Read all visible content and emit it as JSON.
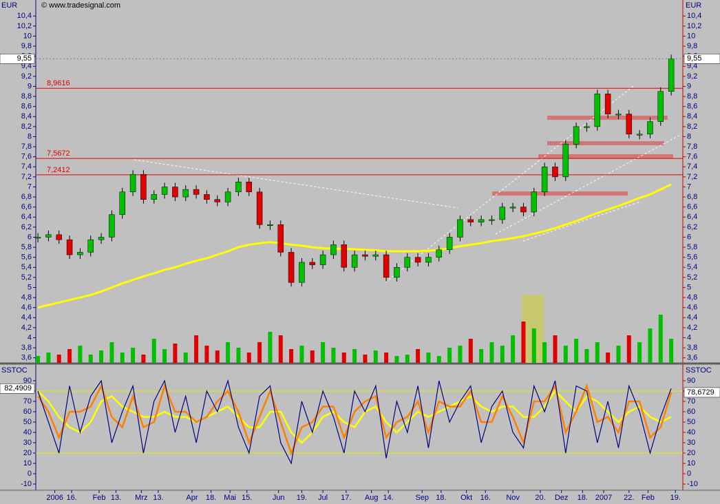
{
  "chart_data": [
    {
      "type": "candlestick",
      "axis_label": "EUR",
      "watermark": "© www.tradesignal.com",
      "x": [
        0,
        5,
        10,
        15,
        20,
        25,
        30,
        35,
        40,
        45,
        50,
        55,
        60,
        65,
        70,
        75,
        80,
        85,
        90,
        95,
        100,
        105,
        110,
        115,
        120,
        125,
        130,
        135,
        140,
        145,
        150,
        155,
        160,
        165,
        170,
        175,
        180,
        185,
        190,
        195,
        200,
        205,
        210,
        215,
        220,
        225,
        230,
        235,
        240,
        245,
        250,
        255,
        260,
        265,
        270,
        275,
        280,
        285,
        290,
        295,
        300
      ],
      "values": [
        6.0,
        6.05,
        5.95,
        5.65,
        5.7,
        5.95,
        6.0,
        6.45,
        6.9,
        7.25,
        6.75,
        6.85,
        7.0,
        6.8,
        6.95,
        6.85,
        6.75,
        6.7,
        6.9,
        7.1,
        6.9,
        6.25,
        6.25,
        5.7,
        5.1,
        5.5,
        5.45,
        5.65,
        5.85,
        5.4,
        5.65,
        5.62,
        5.65,
        5.2,
        5.4,
        5.6,
        5.5,
        5.6,
        5.75,
        6.0,
        6.35,
        6.3,
        6.35,
        6.35,
        6.6,
        6.6,
        6.5,
        6.9,
        7.4,
        7.2,
        7.85,
        8.2,
        8.2,
        8.85,
        8.45,
        8.45,
        8.05,
        8.05,
        8.3,
        8.9,
        9.55
      ],
      "color_up": "#00c000",
      "color_down": "#e00000",
      "overlays": [
        {
          "color": "#ffff00",
          "values": [
            4.6,
            4.65,
            4.7,
            4.75,
            4.8,
            4.85,
            4.92,
            5.0,
            5.08,
            5.15,
            5.22,
            5.28,
            5.35,
            5.4,
            5.47,
            5.53,
            5.58,
            5.65,
            5.72,
            5.8,
            5.85,
            5.88,
            5.9,
            5.88,
            5.85,
            5.83,
            5.8,
            5.78,
            5.77,
            5.77,
            5.76,
            5.75,
            5.74,
            5.72,
            5.72,
            5.72,
            5.72,
            5.73,
            5.75,
            5.78,
            5.82,
            5.85,
            5.88,
            5.92,
            5.95,
            5.98,
            6.02,
            6.07,
            6.12,
            6.18,
            6.25,
            6.32,
            6.4,
            6.48,
            6.55,
            6.62,
            6.7,
            6.78,
            6.85,
            6.95,
            7.05
          ]
        }
      ],
      "volume": [
        10,
        15,
        12,
        20,
        25,
        12,
        18,
        30,
        15,
        22,
        12,
        35,
        20,
        28,
        15,
        40,
        25,
        18,
        30,
        22,
        15,
        30,
        45,
        40,
        20,
        25,
        18,
        30,
        22,
        15,
        20,
        12,
        18,
        15,
        10,
        12,
        20,
        15,
        10,
        22,
        25,
        35,
        20,
        30,
        25,
        40,
        60,
        50,
        30,
        40,
        25,
        35,
        20,
        30,
        15,
        25,
        40,
        30,
        50,
        70,
        35
      ],
      "levels": [
        {
          "value": 8.9616,
          "label": "8,9616"
        },
        {
          "value": 7.5672,
          "label": "7,5672"
        },
        {
          "value": 7.2412,
          "label": "7,2412"
        }
      ],
      "level_color": "#e00000",
      "current": {
        "value": 9.55,
        "label": "9,55"
      },
      "xlim": [
        -1,
        305.5
      ],
      "ylim": [
        3.5,
        10.65
      ],
      "yticks": [
        {
          "value": 3.6,
          "label": "3,6"
        },
        {
          "value": 3.8,
          "label": "3,8"
        },
        4,
        {
          "value": 4.2,
          "label": "4,2"
        },
        {
          "value": 4.4,
          "label": "4,4"
        },
        {
          "value": 4.6,
          "label": "4,6"
        },
        {
          "value": 4.8,
          "label": "4,8"
        },
        5,
        {
          "value": 5.2,
          "label": "5,2"
        },
        {
          "value": 5.4,
          "label": "5,4"
        },
        {
          "value": 5.6,
          "label": "5,6"
        },
        {
          "value": 5.8,
          "label": "5,8"
        },
        6,
        {
          "value": 6.2,
          "label": "6,2"
        },
        {
          "value": 6.4,
          "label": "6,4"
        },
        {
          "value": 6.6,
          "label": "6,6"
        },
        {
          "value": 6.8,
          "label": "6,8"
        },
        7,
        {
          "value": 7.2,
          "label": "7,2"
        },
        {
          "value": 7.4,
          "label": "7,4"
        },
        {
          "value": 7.6,
          "label": "7,6"
        },
        {
          "value": 7.8,
          "label": "7,8"
        },
        8,
        {
          "value": 8.2,
          "label": "8,2"
        },
        {
          "value": 8.4,
          "label": "8,4"
        },
        {
          "value": 8.6,
          "label": "8,6"
        },
        {
          "value": 8.8,
          "label": "8,8"
        },
        9,
        {
          "value": 9.2,
          "label": "9,2"
        },
        {
          "value": 9.4,
          "label": "9,4"
        },
        {
          "value": 9.6,
          "label": "9,6"
        },
        {
          "value": 9.8,
          "label": "9,8"
        },
        10,
        {
          "value": 10.2,
          "label": "10,2"
        },
        {
          "value": 10.4,
          "label": "10,4"
        }
      ]
    },
    {
      "type": "line",
      "axis_label": "SSTOC",
      "x": [
        0,
        5,
        10,
        15,
        20,
        25,
        30,
        35,
        40,
        45,
        50,
        55,
        60,
        65,
        70,
        75,
        80,
        85,
        90,
        95,
        100,
        105,
        110,
        115,
        120,
        125,
        130,
        135,
        140,
        145,
        150,
        155,
        160,
        165,
        170,
        175,
        180,
        185,
        190,
        195,
        200,
        205,
        210,
        215,
        220,
        225,
        230,
        235,
        240,
        245,
        250,
        255,
        260,
        265,
        270,
        275,
        280,
        285,
        290,
        295,
        300
      ],
      "series": [
        {
          "color": "#ffff00",
          "values": [
            80,
            70,
            55,
            45,
            40,
            50,
            70,
            75,
            65,
            60,
            55,
            55,
            60,
            55,
            55,
            50,
            55,
            60,
            65,
            55,
            45,
            45,
            60,
            60,
            40,
            30,
            40,
            55,
            60,
            50,
            45,
            60,
            65,
            50,
            40,
            50,
            60,
            55,
            60,
            65,
            70,
            75,
            65,
            60,
            65,
            65,
            55,
            55,
            65,
            80,
            70,
            60,
            75,
            70,
            60,
            50,
            60,
            65,
            55,
            50,
            55
          ]
        },
        {
          "color": "#ff8000",
          "values": [
            75,
            60,
            35,
            60,
            60,
            65,
            85,
            55,
            45,
            75,
            45,
            50,
            85,
            60,
            60,
            50,
            55,
            70,
            80,
            60,
            30,
            55,
            80,
            50,
            20,
            45,
            50,
            65,
            65,
            35,
            60,
            70,
            75,
            35,
            50,
            55,
            70,
            40,
            70,
            65,
            65,
            80,
            50,
            50,
            75,
            55,
            30,
            70,
            70,
            85,
            40,
            60,
            85,
            50,
            55,
            40,
            70,
            70,
            35,
            45,
            78.6729
          ]
        },
        {
          "color": "#000080",
          "values": [
            80,
            50,
            20,
            85,
            40,
            75,
            90,
            30,
            60,
            85,
            20,
            70,
            90,
            40,
            75,
            30,
            80,
            60,
            90,
            45,
            20,
            75,
            85,
            30,
            10,
            70,
            40,
            80,
            55,
            20,
            80,
            60,
            85,
            15,
            70,
            40,
            85,
            25,
            90,
            50,
            70,
            85,
            30,
            65,
            80,
            40,
            25,
            85,
            60,
            90,
            20,
            85,
            80,
            30,
            70,
            25,
            85,
            60,
            20,
            55,
            82.4909
          ]
        }
      ],
      "current": [
        {
          "value": 82.4909,
          "label": "82,4909"
        },
        {
          "value": 78.6729,
          "label": "78,6729"
        }
      ],
      "levels": [
        80,
        20
      ],
      "level_color": "#e8e800",
      "xlim": [
        -1,
        305.5
      ],
      "ylim": [
        -16,
        105.3
      ],
      "yticks": [
        -10,
        0,
        10,
        20,
        30,
        40,
        50,
        60,
        70,
        80,
        90
      ],
      "xticks": [
        {
          "value": 8,
          "label": "2006"
        },
        {
          "value": 16,
          "label": "16."
        },
        {
          "value": 29,
          "label": "Feb"
        },
        {
          "value": 37,
          "label": "13."
        },
        {
          "value": 49,
          "label": "Mrz"
        },
        {
          "value": 57,
          "label": "13."
        },
        {
          "value": 73,
          "label": "Apr"
        },
        {
          "value": 82,
          "label": "18."
        },
        {
          "value": 91,
          "label": "Mai"
        },
        {
          "value": 99,
          "label": "15."
        },
        {
          "value": 114,
          "label": "Jun"
        },
        {
          "value": 125,
          "label": "19."
        },
        {
          "value": 135,
          "label": "Jul"
        },
        {
          "value": 146,
          "label": "17."
        },
        {
          "value": 158,
          "label": "Aug"
        },
        {
          "value": 166,
          "label": "14."
        },
        {
          "value": 182,
          "label": "Sep"
        },
        {
          "value": 191,
          "label": "18."
        },
        {
          "value": 203,
          "label": "Okt"
        },
        {
          "value": 212,
          "label": "16."
        },
        {
          "value": 225,
          "label": "Nov"
        },
        {
          "value": 238,
          "label": "20."
        },
        {
          "value": 248,
          "label": "Dez"
        },
        {
          "value": 258,
          "label": "18."
        },
        {
          "value": 268,
          "label": "2007"
        },
        {
          "value": 280,
          "label": "22."
        },
        {
          "value": 289,
          "label": "Feb"
        },
        {
          "value": 302,
          "label": "19."
        }
      ]
    }
  ]
}
